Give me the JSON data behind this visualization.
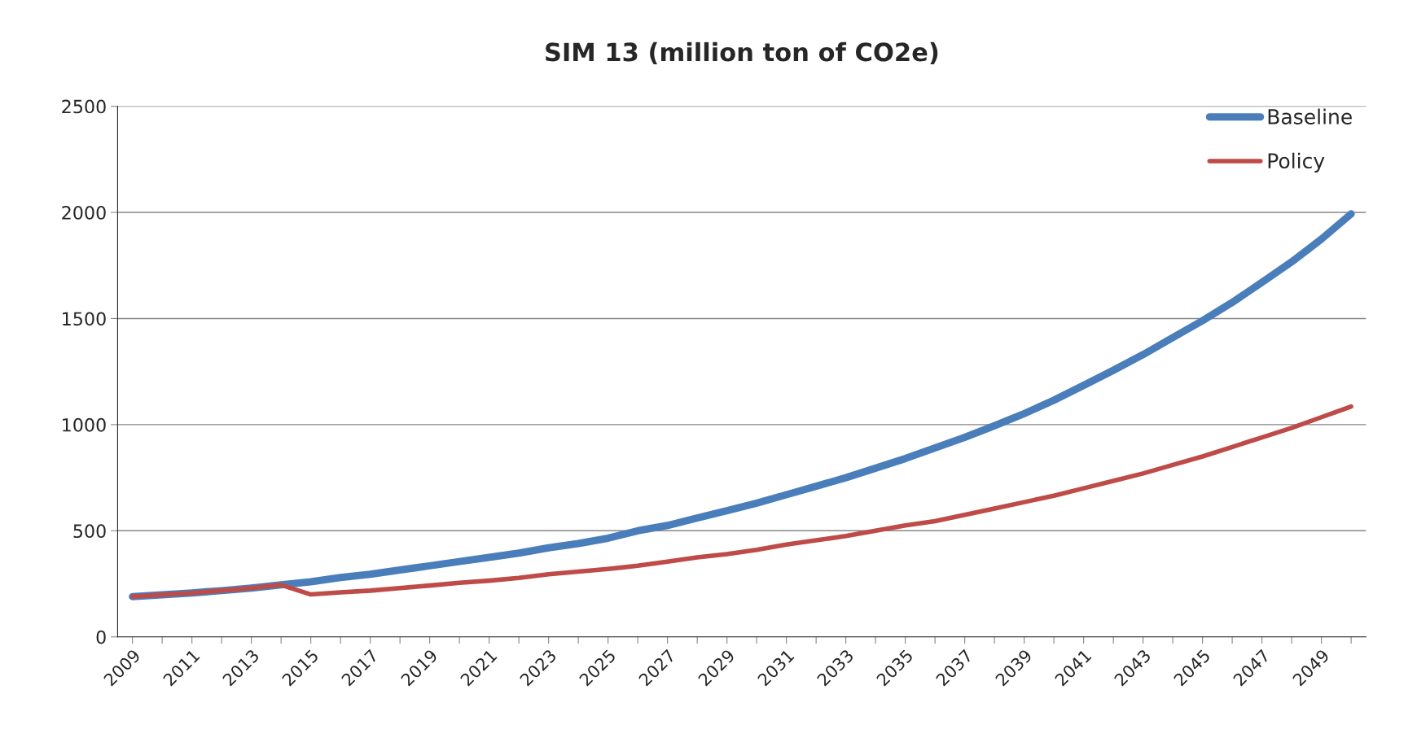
{
  "chart_data": {
    "type": "line",
    "title": "SIM 13 (million ton of CO2e)",
    "categories": [
      "2009",
      null,
      "2011",
      null,
      "2013",
      null,
      "2015",
      null,
      "2017",
      null,
      "2019",
      null,
      "2021",
      null,
      "2023",
      null,
      "2025",
      null,
      "2027",
      null,
      "2029",
      null,
      "2031",
      null,
      "2033",
      null,
      "2035",
      null,
      "2037",
      null,
      "2039",
      null,
      "2041",
      null,
      "2043",
      null,
      "2045",
      null,
      "2047",
      null,
      "2049",
      null
    ],
    "series": [
      {
        "name": "Baseline",
        "color": "#4a7ebb",
        "values": [
          190,
          198,
          207,
          218,
          230,
          245,
          260,
          280,
          295,
          315,
          335,
          355,
          375,
          395,
          420,
          440,
          465,
          500,
          525,
          560,
          595,
          630,
          670,
          710,
          750,
          795,
          840,
          890,
          940,
          995,
          1052,
          1115,
          1185,
          1256,
          1330,
          1410,
          1490,
          1576,
          1670,
          1767,
          1874,
          1993
        ]
      },
      {
        "name": "Policy",
        "color": "#be4b48",
        "values": [
          190,
          198,
          207,
          218,
          230,
          245,
          200,
          210,
          218,
          230,
          242,
          255,
          265,
          278,
          295,
          308,
          320,
          335,
          355,
          375,
          390,
          410,
          435,
          455,
          475,
          500,
          525,
          545,
          575,
          605,
          635,
          665,
          700,
          735,
          770,
          810,
          850,
          895,
          940,
          985,
          1035,
          1085
        ]
      }
    ],
    "ylim": [
      0,
      2500
    ],
    "yticks": [
      0,
      500,
      1000,
      1500,
      2000,
      2500
    ],
    "grid": "y",
    "legend": "top right",
    "marker": "none",
    "line_style": "solid"
  }
}
